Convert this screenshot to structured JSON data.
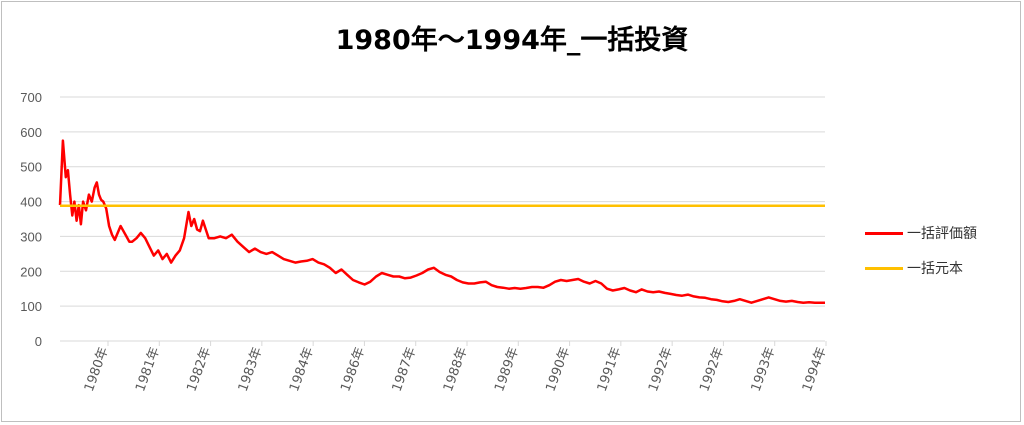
{
  "chart_data": {
    "type": "line",
    "title": "1980年～1994年_一括投資",
    "xlabel": "",
    "ylabel": "",
    "ylim": [
      0,
      700
    ],
    "yticks": [
      0,
      100,
      200,
      300,
      400,
      500,
      600,
      700
    ],
    "x_tick_labels": [
      "1980年",
      "1981年",
      "1982年",
      "1983年",
      "1984年",
      "1986年",
      "1987年",
      "1988年",
      "1989年",
      "1990年",
      "1991年",
      "1992年",
      "1992年",
      "1993年",
      "1994年"
    ],
    "grid": true,
    "legend_position": "right",
    "series": [
      {
        "name": "一括評価額",
        "color": "#ff0000",
        "points": [
          [
            0,
            390
          ],
          [
            0.2,
            575
          ],
          [
            0.4,
            470
          ],
          [
            0.55,
            490
          ],
          [
            0.7,
            420
          ],
          [
            0.85,
            360
          ],
          [
            1.0,
            400
          ],
          [
            1.15,
            345
          ],
          [
            1.3,
            390
          ],
          [
            1.45,
            335
          ],
          [
            1.6,
            400
          ],
          [
            1.8,
            375
          ],
          [
            2.0,
            420
          ],
          [
            2.2,
            400
          ],
          [
            2.4,
            440
          ],
          [
            2.55,
            455
          ],
          [
            2.7,
            420
          ],
          [
            2.85,
            405
          ],
          [
            3.0,
            400
          ],
          [
            3.2,
            380
          ],
          [
            3.4,
            330
          ],
          [
            3.6,
            305
          ],
          [
            3.8,
            290
          ],
          [
            4.0,
            310
          ],
          [
            4.2,
            330
          ],
          [
            4.4,
            315
          ],
          [
            4.6,
            300
          ],
          [
            4.8,
            285
          ],
          [
            5.0,
            285
          ],
          [
            5.3,
            295
          ],
          [
            5.6,
            310
          ],
          [
            5.9,
            295
          ],
          [
            6.2,
            270
          ],
          [
            6.5,
            245
          ],
          [
            6.8,
            260
          ],
          [
            7.1,
            235
          ],
          [
            7.4,
            250
          ],
          [
            7.7,
            225
          ],
          [
            8.0,
            245
          ],
          [
            8.3,
            260
          ],
          [
            8.6,
            295
          ],
          [
            8.9,
            370
          ],
          [
            9.1,
            330
          ],
          [
            9.3,
            350
          ],
          [
            9.5,
            320
          ],
          [
            9.7,
            315
          ],
          [
            9.9,
            345
          ],
          [
            10.1,
            320
          ],
          [
            10.3,
            295
          ],
          [
            10.7,
            295
          ],
          [
            11.1,
            300
          ],
          [
            11.5,
            295
          ],
          [
            11.9,
            305
          ],
          [
            12.3,
            285
          ],
          [
            12.7,
            270
          ],
          [
            13.1,
            255
          ],
          [
            13.5,
            265
          ],
          [
            13.9,
            255
          ],
          [
            14.3,
            250
          ],
          [
            14.7,
            255
          ],
          [
            15.1,
            245
          ],
          [
            15.5,
            235
          ],
          [
            15.9,
            230
          ],
          [
            16.3,
            225
          ],
          [
            16.7,
            228
          ],
          [
            17.1,
            230
          ],
          [
            17.5,
            235
          ],
          [
            17.9,
            225
          ],
          [
            18.3,
            220
          ],
          [
            18.7,
            210
          ],
          [
            19.1,
            195
          ],
          [
            19.5,
            205
          ],
          [
            19.9,
            190
          ],
          [
            20.3,
            175
          ],
          [
            20.7,
            168
          ],
          [
            21.1,
            162
          ],
          [
            21.5,
            170
          ],
          [
            21.9,
            185
          ],
          [
            22.3,
            195
          ],
          [
            22.7,
            190
          ],
          [
            23.1,
            185
          ],
          [
            23.5,
            185
          ],
          [
            23.9,
            180
          ],
          [
            24.3,
            182
          ],
          [
            24.7,
            188
          ],
          [
            25.1,
            195
          ],
          [
            25.5,
            205
          ],
          [
            25.9,
            210
          ],
          [
            26.3,
            198
          ],
          [
            26.7,
            190
          ],
          [
            27.1,
            185
          ],
          [
            27.5,
            175
          ],
          [
            27.9,
            168
          ],
          [
            28.3,
            165
          ],
          [
            28.7,
            165
          ],
          [
            29.1,
            168
          ],
          [
            29.5,
            170
          ],
          [
            29.9,
            160
          ],
          [
            30.3,
            155
          ],
          [
            30.7,
            153
          ],
          [
            31.1,
            150
          ],
          [
            31.5,
            152
          ],
          [
            31.9,
            150
          ],
          [
            32.3,
            152
          ],
          [
            32.7,
            155
          ],
          [
            33.1,
            155
          ],
          [
            33.5,
            153
          ],
          [
            33.9,
            160
          ],
          [
            34.3,
            170
          ],
          [
            34.7,
            175
          ],
          [
            35.1,
            172
          ],
          [
            35.5,
            175
          ],
          [
            35.9,
            178
          ],
          [
            36.3,
            170
          ],
          [
            36.7,
            165
          ],
          [
            37.1,
            172
          ],
          [
            37.5,
            165
          ],
          [
            37.9,
            150
          ],
          [
            38.3,
            145
          ],
          [
            38.7,
            148
          ],
          [
            39.1,
            152
          ],
          [
            39.5,
            145
          ],
          [
            39.9,
            140
          ],
          [
            40.3,
            148
          ],
          [
            40.7,
            142
          ],
          [
            41.1,
            140
          ],
          [
            41.5,
            142
          ],
          [
            41.9,
            138
          ],
          [
            42.3,
            135
          ],
          [
            42.7,
            132
          ],
          [
            43.1,
            130
          ],
          [
            43.5,
            133
          ],
          [
            43.9,
            128
          ],
          [
            44.3,
            125
          ],
          [
            44.7,
            124
          ],
          [
            45.1,
            120
          ],
          [
            45.5,
            118
          ],
          [
            45.9,
            114
          ],
          [
            46.3,
            112
          ],
          [
            46.7,
            115
          ],
          [
            47.1,
            120
          ],
          [
            47.5,
            115
          ],
          [
            47.9,
            110
          ],
          [
            48.3,
            115
          ],
          [
            48.7,
            120
          ],
          [
            49.1,
            125
          ],
          [
            49.5,
            120
          ],
          [
            49.9,
            115
          ],
          [
            50.3,
            113
          ],
          [
            50.7,
            115
          ],
          [
            51.1,
            112
          ],
          [
            51.5,
            110
          ],
          [
            51.9,
            111
          ],
          [
            52.3,
            110
          ],
          [
            52.7,
            110
          ],
          [
            53.0,
            110
          ]
        ]
      },
      {
        "name": "一括元本",
        "color": "#ffc000",
        "points": [
          [
            0,
            388
          ],
          [
            53.0,
            388
          ]
        ]
      }
    ]
  }
}
